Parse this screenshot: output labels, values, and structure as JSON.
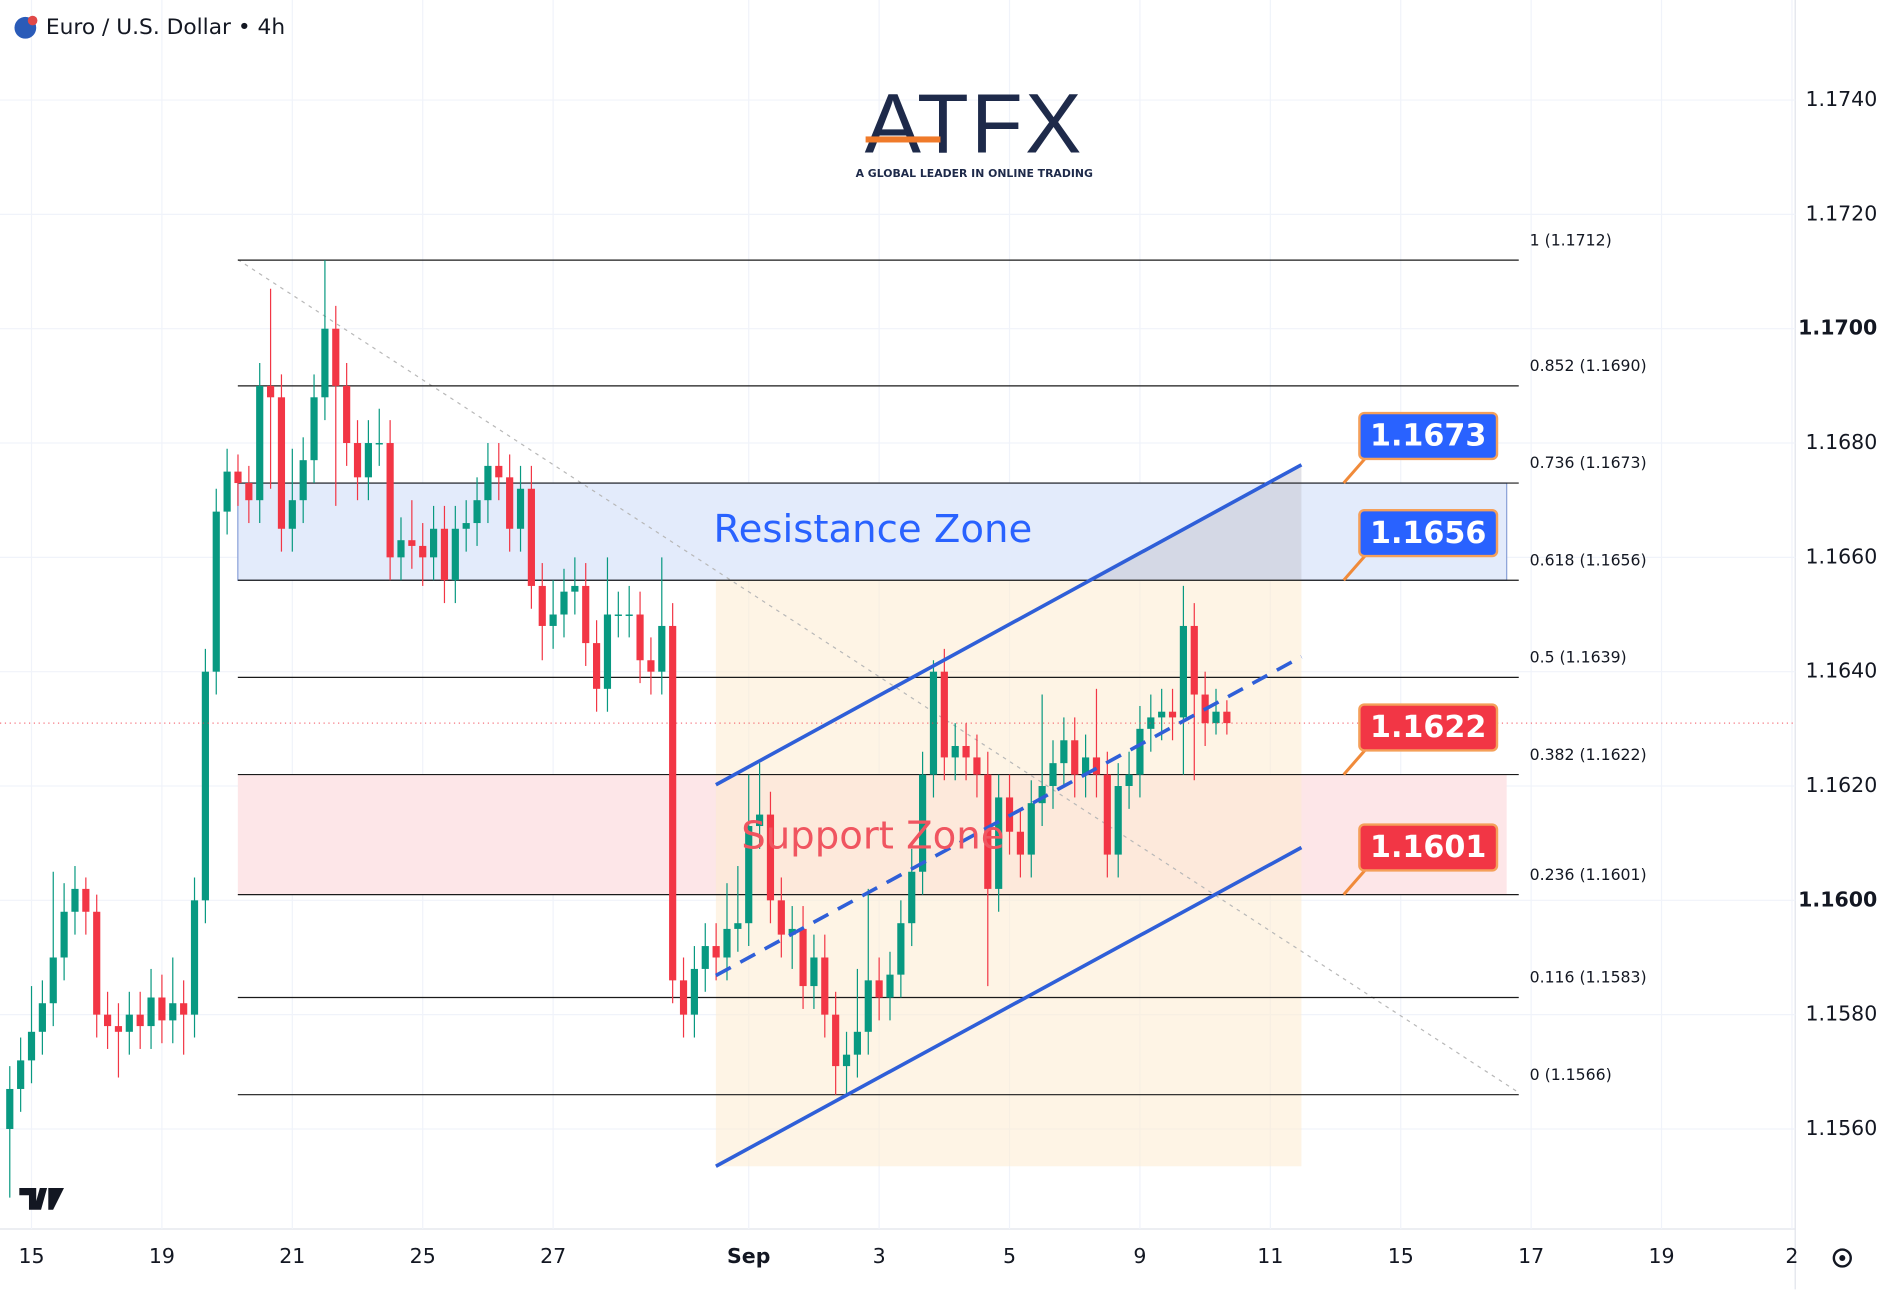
{
  "header": {
    "title": "Euro / U.S. Dollar • 4h"
  },
  "logo": {
    "text": "ATFX",
    "tagline": "A GLOBAL LEADER IN ONLINE TRADING"
  },
  "chart_data": {
    "type": "candlestick",
    "open": [
      1.156,
      1.1567,
      1.1572,
      1.1577,
      1.1582,
      1.159,
      1.1598,
      1.1602,
      1.1598,
      1.158,
      1.1578,
      1.1577,
      1.158,
      1.1578,
      1.1583,
      1.1579,
      1.1582,
      1.158,
      1.16,
      1.164,
      1.1668,
      1.1675,
      1.1673,
      1.167,
      1.169,
      1.1688,
      1.1665,
      1.167,
      1.1677,
      1.1688,
      1.17,
      1.169,
      1.168,
      1.1674,
      1.168,
      1.168,
      1.166,
      1.1663,
      1.1662,
      1.166,
      1.1665,
      1.1656,
      1.1665,
      1.1666,
      1.167,
      1.1676,
      1.1674,
      1.1665,
      1.1672,
      1.1655,
      1.1648,
      1.165,
      1.1654,
      1.1655,
      1.1645,
      1.1637,
      1.165,
      1.165,
      1.165,
      1.1642,
      1.164,
      1.1648,
      1.1586,
      1.158,
      1.1588,
      1.1592,
      1.159,
      1.1595,
      1.1596,
      1.1613,
      1.1615,
      1.16,
      1.1594,
      1.1595,
      1.1585,
      1.159,
      1.158,
      1.1571,
      1.1573,
      1.1577,
      1.1586,
      1.1583,
      1.1587,
      1.1596,
      1.1605,
      1.1622,
      1.164,
      1.1625,
      1.1627,
      1.1625,
      1.1622,
      1.1602,
      1.1618,
      1.1612,
      1.1608,
      1.1617,
      1.162,
      1.1624,
      1.1628,
      1.1622,
      1.1625,
      1.1622,
      1.1608,
      1.162,
      1.1622,
      1.163,
      1.1632,
      1.1633,
      1.1632,
      1.1648,
      1.1636,
      1.1631,
      1.1633
    ],
    "high": [
      1.1571,
      1.1576,
      1.1585,
      1.1586,
      1.1605,
      1.1603,
      1.1606,
      1.1604,
      1.1601,
      1.1584,
      1.1582,
      1.1584,
      1.1584,
      1.1588,
      1.1587,
      1.159,
      1.1586,
      1.1604,
      1.1644,
      1.1672,
      1.1679,
      1.1678,
      1.1676,
      1.1694,
      1.1707,
      1.1692,
      1.1679,
      1.1681,
      1.1692,
      1.1712,
      1.1704,
      1.1694,
      1.1684,
      1.1684,
      1.1686,
      1.1684,
      1.1667,
      1.167,
      1.1666,
      1.1669,
      1.1669,
      1.1669,
      1.167,
      1.1674,
      1.168,
      1.168,
      1.1678,
      1.1676,
      1.1676,
      1.1659,
      1.1656,
      1.1658,
      1.166,
      1.1659,
      1.1649,
      1.166,
      1.1654,
      1.1655,
      1.1654,
      1.1646,
      1.166,
      1.1652,
      1.159,
      1.1592,
      1.1596,
      1.1596,
      1.1603,
      1.1606,
      1.1622,
      1.1624,
      1.1619,
      1.1604,
      1.1599,
      1.1599,
      1.1594,
      1.1594,
      1.1584,
      1.1577,
      1.1588,
      1.1602,
      1.159,
      1.1591,
      1.16,
      1.1609,
      1.1626,
      1.1642,
      1.1644,
      1.1631,
      1.1631,
      1.1629,
      1.1626,
      1.1622,
      1.1622,
      1.1616,
      1.1621,
      1.1636,
      1.1628,
      1.1632,
      1.1632,
      1.1629,
      1.1637,
      1.1626,
      1.1624,
      1.1626,
      1.1634,
      1.1636,
      1.1637,
      1.1637,
      1.1655,
      1.1652,
      1.164,
      1.1637,
      1.1635
    ],
    "low": [
      1.1548,
      1.1563,
      1.1568,
      1.1573,
      1.1578,
      1.1586,
      1.1594,
      1.1594,
      1.1576,
      1.1574,
      1.1569,
      1.1573,
      1.1574,
      1.1574,
      1.1575,
      1.1575,
      1.1573,
      1.1576,
      1.1596,
      1.1636,
      1.1664,
      1.1669,
      1.1666,
      1.1666,
      1.1672,
      1.1661,
      1.1661,
      1.1666,
      1.1673,
      1.1684,
      1.1669,
      1.1676,
      1.167,
      1.167,
      1.1676,
      1.1656,
      1.1656,
      1.1658,
      1.1655,
      1.1656,
      1.1652,
      1.1652,
      1.1661,
      1.1662,
      1.1666,
      1.167,
      1.1661,
      1.1661,
      1.1651,
      1.1642,
      1.1644,
      1.1646,
      1.165,
      1.1641,
      1.1633,
      1.1633,
      1.1646,
      1.1646,
      1.1638,
      1.1636,
      1.1636,
      1.1582,
      1.1576,
      1.1576,
      1.1584,
      1.1586,
      1.1586,
      1.1591,
      1.1592,
      1.1609,
      1.1596,
      1.159,
      1.1588,
      1.1581,
      1.1581,
      1.1576,
      1.1566,
      1.1566,
      1.1569,
      1.1573,
      1.1579,
      1.1579,
      1.1583,
      1.1592,
      1.1601,
      1.1618,
      1.1621,
      1.1621,
      1.1621,
      1.1618,
      1.1585,
      1.1598,
      1.1608,
      1.1604,
      1.1604,
      1.1613,
      1.1616,
      1.162,
      1.1618,
      1.1618,
      1.1618,
      1.1604,
      1.1604,
      1.1616,
      1.1618,
      1.1626,
      1.1628,
      1.1628,
      1.1622,
      1.1621,
      1.1627,
      1.1629,
      1.1629
    ],
    "close": [
      1.1567,
      1.1572,
      1.1577,
      1.1582,
      1.159,
      1.1598,
      1.1602,
      1.1598,
      1.158,
      1.1578,
      1.1577,
      1.158,
      1.1578,
      1.1583,
      1.1579,
      1.1582,
      1.158,
      1.16,
      1.164,
      1.1668,
      1.1675,
      1.1673,
      1.167,
      1.169,
      1.1688,
      1.1665,
      1.167,
      1.1677,
      1.1688,
      1.17,
      1.169,
      1.168,
      1.1674,
      1.168,
      1.168,
      1.166,
      1.1663,
      1.1662,
      1.166,
      1.1665,
      1.1656,
      1.1665,
      1.1666,
      1.167,
      1.1676,
      1.1674,
      1.1665,
      1.1672,
      1.1655,
      1.1648,
      1.165,
      1.1654,
      1.1655,
      1.1645,
      1.1637,
      1.165,
      1.165,
      1.165,
      1.1642,
      1.164,
      1.1648,
      1.1586,
      1.158,
      1.1588,
      1.1592,
      1.159,
      1.1595,
      1.1596,
      1.1613,
      1.1615,
      1.16,
      1.1594,
      1.1595,
      1.1585,
      1.159,
      1.158,
      1.1571,
      1.1573,
      1.1577,
      1.1586,
      1.1583,
      1.1587,
      1.1596,
      1.1605,
      1.1622,
      1.164,
      1.1625,
      1.1627,
      1.1625,
      1.1622,
      1.1602,
      1.1618,
      1.1612,
      1.1608,
      1.1617,
      1.162,
      1.1624,
      1.1628,
      1.1622,
      1.1625,
      1.1622,
      1.1608,
      1.162,
      1.1622,
      1.163,
      1.1632,
      1.1633,
      1.1632,
      1.1648,
      1.1636,
      1.1631,
      1.1633,
      1.1631
    ],
    "up_color": "#089981",
    "down_color": "#f23645",
    "xlim": [
      -0.9,
      164.3
    ],
    "xticks": [
      {
        "value": 2,
        "label": "15"
      },
      {
        "value": 14,
        "label": "19"
      },
      {
        "value": 26,
        "label": "21"
      },
      {
        "value": 38,
        "label": "25"
      },
      {
        "value": 50,
        "label": "27"
      },
      {
        "value": 68,
        "label": "Sep"
      },
      {
        "value": 80,
        "label": "3"
      },
      {
        "value": 92,
        "label": "5"
      },
      {
        "value": 104,
        "label": "9"
      },
      {
        "value": 116,
        "label": "11"
      },
      {
        "value": 128,
        "label": "15"
      },
      {
        "value": 140,
        "label": "17"
      },
      {
        "value": 152,
        "label": "19"
      },
      {
        "value": 164,
        "label": "2"
      }
    ],
    "ylim": [
      1.15425,
      1.17575
    ],
    "yticks": [
      {
        "value": 1.174,
        "label": "1.1740"
      },
      {
        "value": 1.172,
        "label": "1.1720"
      },
      {
        "value": 1.17,
        "label": "1.1700"
      },
      {
        "value": 1.168,
        "label": "1.1680"
      },
      {
        "value": 1.166,
        "label": "1.1660"
      },
      {
        "value": 1.164,
        "label": "1.1640"
      },
      {
        "value": 1.162,
        "label": "1.1620"
      },
      {
        "value": 1.16,
        "label": "1.1600"
      },
      {
        "value": 1.158,
        "label": "1.1580"
      },
      {
        "value": 1.156,
        "label": "1.1560"
      }
    ],
    "fib_levels": [
      {
        "value": 1.1712,
        "label": "1 (1.1712)"
      },
      {
        "value": 1.169,
        "label": "0.852 (1.1690)"
      },
      {
        "value": 1.1673,
        "label": "0.736 (1.1673)"
      },
      {
        "value": 1.1656,
        "label": "0.618 (1.1656)"
      },
      {
        "value": 1.1639,
        "label": "0.5 (1.1639)"
      },
      {
        "value": 1.1622,
        "label": "0.382 (1.1622)"
      },
      {
        "value": 1.1601,
        "label": "0.236 (1.1601)"
      },
      {
        "value": 1.1583,
        "label": "0.116 (1.1583)"
      },
      {
        "value": 1.1566,
        "label": "0 (1.1566)"
      }
    ],
    "zones": [
      {
        "label": "Resistance Zone",
        "low": 1.1656,
        "high": 1.1673,
        "color": "#2962ff",
        "fill": "#e3ebfb"
      },
      {
        "label": "Support Zone",
        "low": 1.1601,
        "high": 1.1622,
        "color": "#f05560",
        "fill": "#fde6e8"
      }
    ],
    "callouts": [
      {
        "value": 1.1673,
        "color": "#2962ff"
      },
      {
        "value": 1.1656,
        "color": "#2962ff"
      },
      {
        "value": 1.1622,
        "color": "#f23645"
      },
      {
        "value": 1.1601,
        "color": "#f23645"
      }
    ]
  }
}
